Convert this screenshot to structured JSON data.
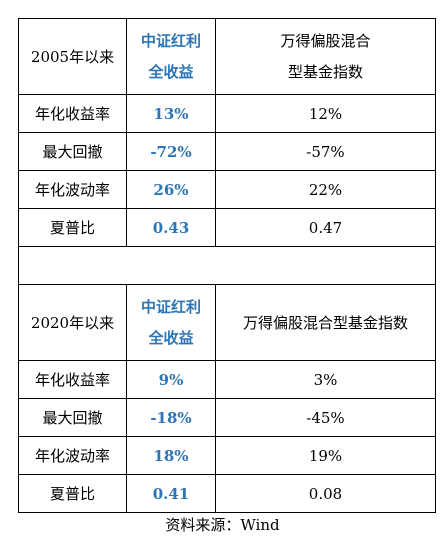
{
  "section1": {
    "header": {
      "period": "2005年以来",
      "col2_line1": "中证红利",
      "col2_line2": "全收益",
      "col3_line1": "万得偏股混合",
      "col3_line2": "型基金指数"
    },
    "rows": [
      {
        "label": "年化收益率",
        "v1": "13%",
        "v2": "12%"
      },
      {
        "label": "最大回撤",
        "v1": "-72%",
        "v2": "-57%"
      },
      {
        "label": "年化波动率",
        "v1": "26%",
        "v2": "22%"
      },
      {
        "label": "夏普比",
        "v1": "0.43",
        "v2": "0.47"
      }
    ]
  },
  "section2": {
    "header": {
      "period": "2020年以来",
      "col2_line1": "中证红利",
      "col2_line2": "全收益",
      "col3": "万得偏股混合型基金指数"
    },
    "rows": [
      {
        "label": "年化收益率",
        "v1": "9%",
        "v2": "3%"
      },
      {
        "label": "最大回撤",
        "v1": "-18%",
        "v2": "-45%"
      },
      {
        "label": "年化波动率",
        "v1": "18%",
        "v2": "19%"
      },
      {
        "label": "夏普比",
        "v1": "0.41",
        "v2": "0.08"
      }
    ]
  },
  "source": "资料来源：Wind",
  "colors": {
    "highlight": "#2e75b6"
  }
}
